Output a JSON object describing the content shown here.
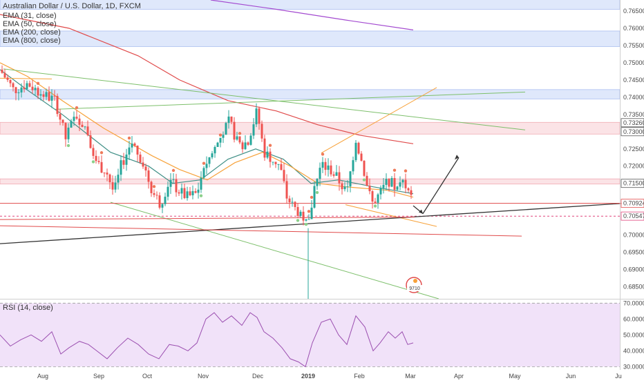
{
  "header": {
    "title": "Australian Dollar / U.S. Dollar, 1D, FXCM",
    "indicators": [
      "EMA (31, close)",
      "EMA (50, close)",
      "EMA (200, close)",
      "EMA (800, close)"
    ]
  },
  "rsi_label": "RSI (14, close)",
  "badge_label": "9710",
  "colors": {
    "up": "#26a69a",
    "down": "#ef5350",
    "ema31": "#3f8f86",
    "ema50": "#f7a23a",
    "ema200": "#e04a4a",
    "ema800": "#a34ad0",
    "rsi": "#9b4fb0",
    "blue_zone": "#dfe8fb",
    "red_zone": "#fbe3e6",
    "rsi_bg": "#f1e2f9",
    "trend_green": "#7cbf6a",
    "trend_orange": "#f7a23a",
    "trend_black": "#333333",
    "trend_red": "#e04a4a"
  },
  "chart_data": [
    {
      "type": "candlestick",
      "title": "Australian Dollar / U.S. Dollar, 1D, FXCM",
      "x_tick_labels": [
        "Aug",
        "Sep",
        "Oct",
        "Nov",
        "Dec",
        "2019",
        "Feb",
        "Mar",
        "Apr",
        "May",
        "Jun",
        "Ju"
      ],
      "y_ticks": [
        0.765,
        0.76,
        0.755,
        0.75,
        0.745,
        0.74,
        0.735,
        0.7326,
        0.73,
        0.725,
        0.72,
        0.715,
        0.7092,
        0.7055,
        0.7,
        0.695,
        0.69,
        0.685
      ],
      "y_tick_labels": [
        "0.76500",
        "0.76000",
        "0.75500",
        "0.75000",
        "0.74500",
        "0.74000",
        "0.73500",
        "0.73260",
        "0.73000",
        "0.72500",
        "0.72000",
        "0.71500",
        "0.70924",
        "0.70547",
        "0.70000",
        "0.69500",
        "0.69000",
        "0.68500"
      ],
      "highlighted_levels": [
        {
          "label": "0.73260",
          "value": 0.7326
        },
        {
          "label": "0.73000",
          "value": 0.73
        },
        {
          "label": "0.71500",
          "value": 0.715
        },
        {
          "label": "0.70924",
          "value": 0.70924
        },
        {
          "label": "0.70547",
          "value": 0.70547
        }
      ],
      "ylim": [
        0.6815,
        0.7682
      ],
      "zones": [
        {
          "type": "blue",
          "from": 0.7655,
          "to": 0.7686
        },
        {
          "type": "blue",
          "from": 0.7547,
          "to": 0.7592
        },
        {
          "type": "blue",
          "from": 0.7395,
          "to": 0.7422
        },
        {
          "type": "red",
          "from": 0.7293,
          "to": 0.7327
        },
        {
          "type": "red",
          "from": 0.7148,
          "to": 0.7163
        }
      ],
      "emas": [
        {
          "name": "EMA (31, close)",
          "points": [
            [
              0,
              0.748
            ],
            [
              40,
              0.742
            ],
            [
              90,
              0.735
            ],
            [
              160,
              0.724
            ],
            [
              215,
              0.72
            ],
            [
              250,
              0.715
            ],
            [
              290,
              0.716
            ],
            [
              330,
              0.722
            ],
            [
              370,
              0.725
            ],
            [
              410,
              0.722
            ],
            [
              450,
              0.715
            ],
            [
              490,
              0.716
            ],
            [
              540,
              0.714
            ],
            [
              598,
              0.712
            ]
          ]
        },
        {
          "name": "EMA (50, close)",
          "points": [
            [
              0,
              0.75
            ],
            [
              40,
              0.746
            ],
            [
              90,
              0.739
            ],
            [
              150,
              0.731
            ],
            [
              220,
              0.723
            ],
            [
              260,
              0.719
            ],
            [
              300,
              0.716
            ],
            [
              340,
              0.721
            ],
            [
              380,
              0.724
            ],
            [
              420,
              0.72
            ],
            [
              460,
              0.715
            ],
            [
              500,
              0.714
            ],
            [
              560,
              0.713
            ],
            [
              598,
              0.711
            ]
          ]
        },
        {
          "name": "EMA (200, close)",
          "points": [
            [
              0,
              0.764
            ],
            [
              100,
              0.76
            ],
            [
              200,
              0.752
            ],
            [
              260,
              0.745
            ],
            [
              330,
              0.739
            ],
            [
              400,
              0.736
            ],
            [
              460,
              0.732
            ],
            [
              520,
              0.729
            ],
            [
              598,
              0.7265
            ]
          ]
        },
        {
          "name": "EMA (800, close)",
          "points": [
            [
              305,
              0.7682
            ],
            [
              400,
              0.7655
            ],
            [
              500,
              0.7624
            ],
            [
              598,
              0.7595
            ]
          ]
        }
      ],
      "trendlines": [
        {
          "color": "green",
          "points": [
            [
              5,
              0.7482
            ],
            [
              760,
              0.7305
            ]
          ]
        },
        {
          "color": "green",
          "points": [
            [
              80,
              0.7365
            ],
            [
              760,
              0.7415
            ]
          ]
        },
        {
          "color": "green",
          "points": [
            [
              160,
              0.7095
            ],
            [
              635,
              0.6815
            ]
          ]
        },
        {
          "color": "orange",
          "points": [
            [
              0,
              0.7455
            ],
            [
              75,
              0.7453
            ]
          ]
        },
        {
          "color": "orange",
          "points": [
            [
              465,
              0.7238
            ],
            [
              632,
              0.7428
            ]
          ]
        },
        {
          "color": "orange",
          "points": [
            [
              500,
              0.7088
            ],
            [
              632,
              0.7025
            ]
          ]
        },
        {
          "color": "black",
          "points": [
            [
              0,
              0.6975
            ],
            [
              932,
              0.7096
            ]
          ]
        },
        {
          "color": "red",
          "points": [
            [
              0,
              0.7045
            ],
            [
              600,
              0.7052
            ]
          ]
        },
        {
          "color": "red",
          "points": [
            [
              0,
              0.7027
            ],
            [
              755,
              0.6997
            ]
          ]
        },
        {
          "color": "red",
          "points": [
            [
              0,
              0.7092
            ],
            [
              932,
              0.7092
            ]
          ]
        },
        {
          "color": "black",
          "points": [
            [
              598,
              0.7085
            ],
            [
              612,
              0.7062
            ]
          ]
        },
        {
          "color": "black",
          "points": [
            [
              612,
              0.7062
            ],
            [
              664,
              0.7225
            ]
          ]
        }
      ]
    },
    {
      "type": "line",
      "title": "RSI (14, close)",
      "y_tick_labels": [
        "70.0000",
        "60.0000",
        "50.0000",
        "40.0000",
        "30.0000"
      ],
      "y_ticks": [
        70,
        60,
        50,
        40,
        30
      ],
      "ylim": [
        28,
        71
      ]
    }
  ]
}
